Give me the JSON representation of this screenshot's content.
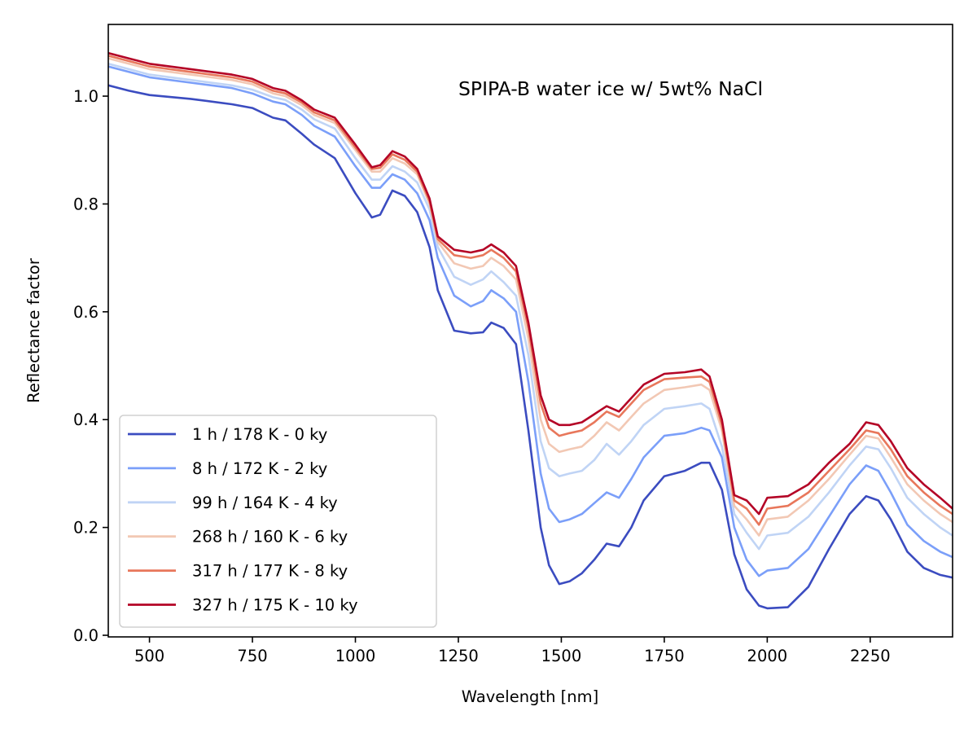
{
  "chart_data": {
    "type": "line",
    "title": "",
    "annotation": "SPIPA-B water ice w/ 5wt% NaCl",
    "xlabel": "Wavelength [nm]",
    "ylabel": "Reflectance factor",
    "xlim": [
      400,
      2450
    ],
    "ylim": [
      -0.003,
      1.133
    ],
    "xticks": [
      500,
      750,
      1000,
      1250,
      1500,
      1750,
      2000,
      2250
    ],
    "xtick_labels": [
      "500",
      "750",
      "1000",
      "1250",
      "1500",
      "1750",
      "2000",
      "2250"
    ],
    "yticks": [
      0.0,
      0.2,
      0.4,
      0.6,
      0.8,
      1.0
    ],
    "ytick_labels": [
      "0.0",
      "0.2",
      "0.4",
      "0.6",
      "0.8",
      "1.0"
    ],
    "grid": false,
    "legend_position": "lower-left",
    "x": [
      400,
      450,
      500,
      600,
      700,
      750,
      800,
      830,
      870,
      900,
      950,
      1000,
      1040,
      1060,
      1090,
      1120,
      1150,
      1180,
      1200,
      1240,
      1280,
      1310,
      1330,
      1360,
      1390,
      1420,
      1450,
      1470,
      1495,
      1520,
      1550,
      1580,
      1610,
      1640,
      1670,
      1700,
      1750,
      1800,
      1840,
      1860,
      1890,
      1920,
      1950,
      1980,
      2000,
      2050,
      2100,
      2150,
      2200,
      2240,
      2270,
      2300,
      2340,
      2380,
      2420,
      2450
    ],
    "series": [
      {
        "name": "1 h / 178 K - 0 ky",
        "color": "#3b4cc0",
        "values": [
          1.02,
          1.01,
          1.002,
          0.995,
          0.985,
          0.978,
          0.96,
          0.955,
          0.93,
          0.91,
          0.885,
          0.82,
          0.775,
          0.78,
          0.825,
          0.815,
          0.785,
          0.72,
          0.64,
          0.565,
          0.56,
          0.562,
          0.58,
          0.57,
          0.54,
          0.38,
          0.2,
          0.13,
          0.095,
          0.1,
          0.115,
          0.14,
          0.17,
          0.165,
          0.2,
          0.25,
          0.295,
          0.305,
          0.32,
          0.32,
          0.27,
          0.15,
          0.085,
          0.055,
          0.05,
          0.052,
          0.09,
          0.16,
          0.225,
          0.258,
          0.25,
          0.215,
          0.155,
          0.125,
          0.112,
          0.107
        ]
      },
      {
        "name": "8 h / 172 K - 2 ky",
        "color": "#7b9ff9",
        "values": [
          1.055,
          1.045,
          1.035,
          1.025,
          1.015,
          1.005,
          0.99,
          0.985,
          0.965,
          0.945,
          0.925,
          0.87,
          0.83,
          0.83,
          0.855,
          0.845,
          0.82,
          0.77,
          0.7,
          0.63,
          0.61,
          0.62,
          0.64,
          0.625,
          0.6,
          0.47,
          0.3,
          0.235,
          0.21,
          0.215,
          0.225,
          0.245,
          0.265,
          0.255,
          0.29,
          0.33,
          0.37,
          0.375,
          0.385,
          0.38,
          0.33,
          0.2,
          0.14,
          0.11,
          0.12,
          0.125,
          0.16,
          0.22,
          0.28,
          0.315,
          0.305,
          0.265,
          0.205,
          0.175,
          0.155,
          0.145
        ]
      },
      {
        "name": "99 h / 164 K - 4 ky",
        "color": "#c0d4f5",
        "values": [
          1.06,
          1.05,
          1.04,
          1.03,
          1.02,
          1.012,
          0.998,
          0.993,
          0.975,
          0.957,
          0.94,
          0.885,
          0.845,
          0.845,
          0.87,
          0.86,
          0.84,
          0.79,
          0.72,
          0.665,
          0.65,
          0.66,
          0.675,
          0.655,
          0.63,
          0.52,
          0.36,
          0.31,
          0.295,
          0.3,
          0.305,
          0.325,
          0.355,
          0.335,
          0.36,
          0.39,
          0.42,
          0.425,
          0.43,
          0.42,
          0.35,
          0.225,
          0.19,
          0.16,
          0.185,
          0.19,
          0.22,
          0.265,
          0.315,
          0.35,
          0.345,
          0.31,
          0.255,
          0.225,
          0.2,
          0.185
        ]
      },
      {
        "name": "268 h / 160 K - 6 ky",
        "color": "#f2c8b4",
        "values": [
          1.07,
          1.06,
          1.05,
          1.04,
          1.03,
          1.022,
          1.005,
          1.0,
          0.983,
          0.965,
          0.95,
          0.9,
          0.86,
          0.86,
          0.885,
          0.875,
          0.855,
          0.8,
          0.73,
          0.69,
          0.68,
          0.685,
          0.7,
          0.685,
          0.66,
          0.55,
          0.4,
          0.355,
          0.34,
          0.345,
          0.35,
          0.37,
          0.395,
          0.38,
          0.405,
          0.43,
          0.455,
          0.46,
          0.465,
          0.455,
          0.38,
          0.24,
          0.215,
          0.185,
          0.215,
          0.22,
          0.25,
          0.29,
          0.335,
          0.37,
          0.365,
          0.33,
          0.28,
          0.25,
          0.225,
          0.21
        ]
      },
      {
        "name": "317 h / 177 K - 8 ky",
        "color": "#e8775b",
        "values": [
          1.075,
          1.065,
          1.055,
          1.045,
          1.035,
          1.027,
          1.01,
          1.005,
          0.988,
          0.97,
          0.955,
          0.905,
          0.865,
          0.867,
          0.892,
          0.882,
          0.86,
          0.805,
          0.735,
          0.705,
          0.7,
          0.705,
          0.715,
          0.7,
          0.675,
          0.57,
          0.43,
          0.385,
          0.37,
          0.375,
          0.38,
          0.395,
          0.415,
          0.405,
          0.43,
          0.455,
          0.475,
          0.478,
          0.48,
          0.47,
          0.39,
          0.25,
          0.235,
          0.205,
          0.235,
          0.24,
          0.265,
          0.305,
          0.345,
          0.38,
          0.375,
          0.345,
          0.295,
          0.265,
          0.24,
          0.225
        ]
      },
      {
        "name": "327 h / 175 K - 10 ky",
        "color": "#b40426",
        "values": [
          1.08,
          1.07,
          1.06,
          1.05,
          1.04,
          1.032,
          1.015,
          1.01,
          0.992,
          0.975,
          0.96,
          0.91,
          0.868,
          0.872,
          0.898,
          0.888,
          0.865,
          0.81,
          0.74,
          0.715,
          0.71,
          0.715,
          0.725,
          0.71,
          0.685,
          0.58,
          0.445,
          0.4,
          0.39,
          0.39,
          0.395,
          0.41,
          0.425,
          0.415,
          0.44,
          0.465,
          0.485,
          0.488,
          0.493,
          0.48,
          0.4,
          0.26,
          0.25,
          0.225,
          0.255,
          0.258,
          0.28,
          0.32,
          0.355,
          0.395,
          0.39,
          0.36,
          0.31,
          0.28,
          0.255,
          0.235
        ]
      }
    ]
  }
}
